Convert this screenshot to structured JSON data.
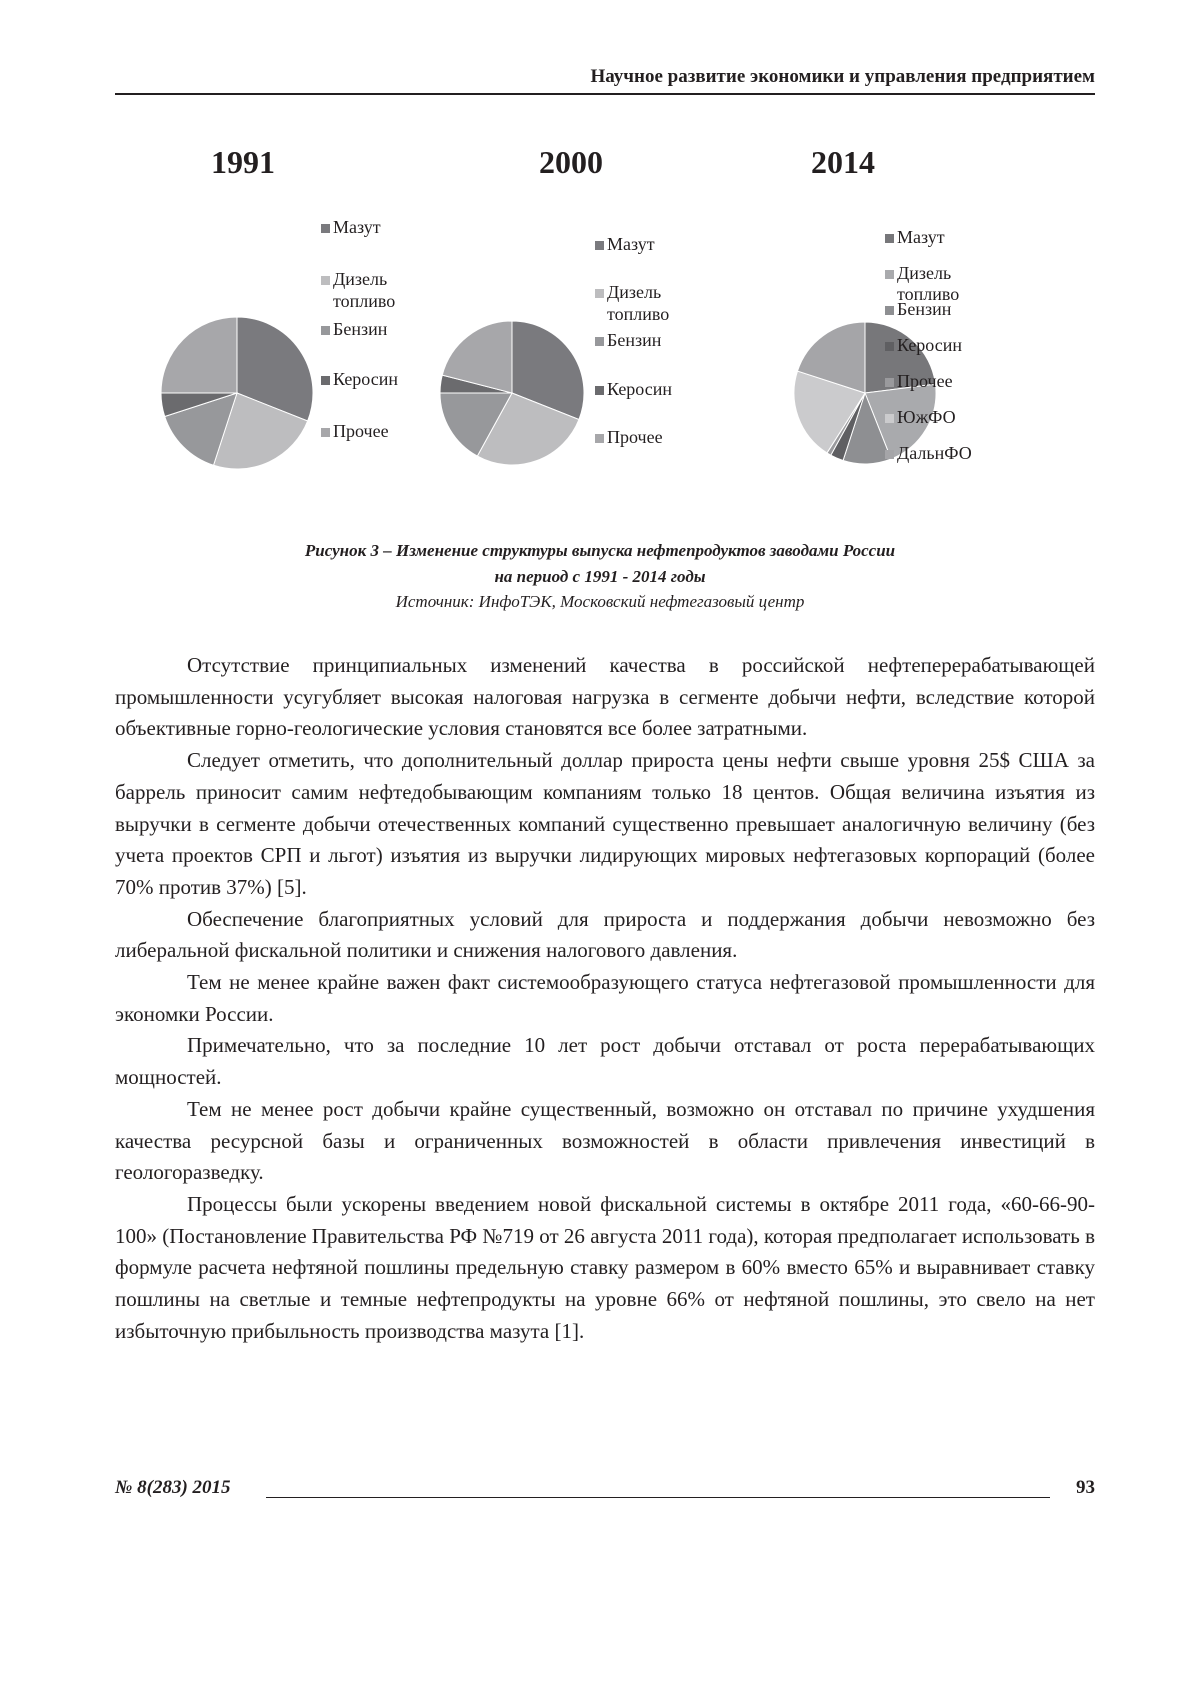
{
  "header": {
    "journal_title": "Научное развитие экономики и управления предприятием"
  },
  "chart_data": [
    {
      "type": "pie",
      "title": "1991",
      "categories": [
        "Мазут",
        "Дизель топливо",
        "Бензин",
        "Керосин",
        "Прочее"
      ],
      "legend_lines": [
        [
          "Мазут"
        ],
        [
          "Дизель",
          "топливо"
        ],
        [
          "Бензин"
        ],
        [
          "Керосин"
        ],
        [
          "Прочее"
        ]
      ],
      "values": [
        31,
        24,
        15,
        5,
        25
      ],
      "colors": [
        "#7a7a7e",
        "#bdbdbf",
        "#97989b",
        "#6b6b6e",
        "#a7a7aa"
      ],
      "legend_placement": "right"
    },
    {
      "type": "pie",
      "title": "2000",
      "categories": [
        "Мазут",
        "Дизель топливо",
        "Бензин",
        "Керосин",
        "Прочее"
      ],
      "legend_lines": [
        [
          "Мазут"
        ],
        [
          "Дизель",
          "топливо"
        ],
        [
          "Бензин"
        ],
        [
          "Керосин"
        ],
        [
          "Прочее"
        ]
      ],
      "values": [
        31,
        27,
        17,
        4,
        21
      ],
      "colors": [
        "#7a7a7e",
        "#bdbdbf",
        "#97989b",
        "#6b6b6e",
        "#a7a7aa"
      ],
      "legend_placement": "right"
    },
    {
      "type": "pie",
      "title": "2014",
      "categories": [
        "Мазут",
        "Дизель топливо",
        "Бензин",
        "Керосин",
        "Прочее",
        "ЮжФО",
        "ДальнФО"
      ],
      "legend_lines": [
        [
          "Мазут"
        ],
        [
          "Дизель",
          "топливо"
        ],
        [
          "Бензин"
        ],
        [
          "Керосин"
        ],
        [
          "Прочее"
        ],
        [
          "ЮжФО"
        ],
        [
          "ДальнФО"
        ]
      ],
      "values": [
        23,
        21,
        11,
        3,
        1,
        21,
        20
      ],
      "colors": [
        "#77777a",
        "#a9aaad",
        "#8e8f92",
        "#5f5f62",
        "#9a9a9d",
        "#cbcbcd",
        "#a5a5a8"
      ],
      "legend_placement": "right"
    }
  ],
  "caption": {
    "line1": "Рисунок 3 – Изменение структуры выпуска нефтепродуктов заводами России",
    "line2": "на период с 1991 - 2014 годы",
    "source": "Источник: ИнфоТЭК, Московский нефтегазовый центр"
  },
  "paragraphs": [
    "Отсутствие принципиальных изменений качества в российской нефтеперерабатывающей промышленности усугубляет высокая налоговая нагрузка в сегменте добычи нефти, вследствие которой объективные горно-геологические условия становятся все более затратными.",
    "Следует отметить, что дополнительный доллар прироста цены нефти свыше уровня 25$ США за баррель приносит самим нефтедобывающим компаниям только 18 центов. Общая величина изъятия из выручки в сегменте добычи отечественных компаний существенно превышает аналогичную величину (без учета проектов СРП и льгот) изъятия из выручки лидирующих мировых нефтегазовых корпораций (более 70% против 37%) [5].",
    "Обеспечение благоприятных условий для прироста и поддержания добычи невозможно без либеральной фискальной политики и снижения налогового давления.",
    "Тем не менее крайне важен факт системообразующего статуса нефтегазовой промышленности для экономки России.",
    "Примечательно, что за последние 10 лет рост добычи отставал от роста перерабатывающих мощностей.",
    "Тем не менее рост добычи крайне существенный, возможно он отставал по причине ухудшения качества ресурсной базы и ограниченных возможностей в области привлечения инвестиций в геологоразведку.",
    "Процессы были ускорены введением новой фискальной системы в октябре 2011 года, «60-66-90-100» (Постановление Правительства РФ №719 от 26 августа 2011 года), которая предполагает использовать в формуле расчета нефтяной пошлины предельную ставку размером в 60% вместо 65% и выравнивает ставку пошлины на светлые и темные нефтепродукты на уровне 66% от нефтяной пошлины, это свело на нет избыточную прибыльность производства мазута [1]."
  ],
  "footer": {
    "issue": "№ 8(283) 2015",
    "page_number": "93"
  }
}
